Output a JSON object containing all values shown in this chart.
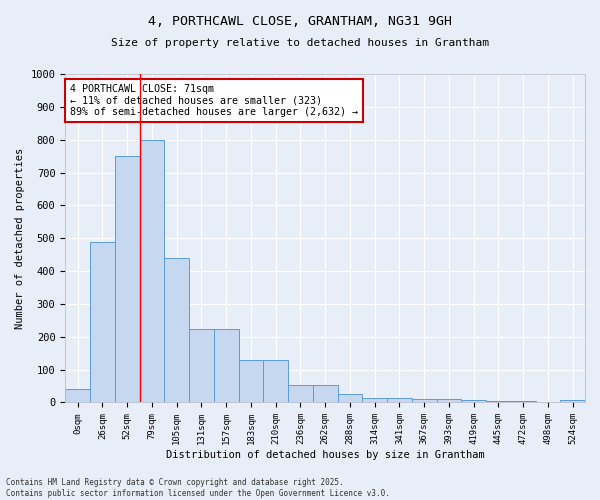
{
  "title": "4, PORTHCAWL CLOSE, GRANTHAM, NG31 9GH",
  "subtitle": "Size of property relative to detached houses in Grantham",
  "xlabel": "Distribution of detached houses by size in Grantham",
  "ylabel": "Number of detached properties",
  "bar_color": "#c5d8f0",
  "bar_edge_color": "#5b9bd5",
  "background_color": "#e8eef8",
  "grid_color": "#ffffff",
  "categories": [
    "0sqm",
    "26sqm",
    "52sqm",
    "79sqm",
    "105sqm",
    "131sqm",
    "157sqm",
    "183sqm",
    "210sqm",
    "236sqm",
    "262sqm",
    "288sqm",
    "314sqm",
    "341sqm",
    "367sqm",
    "393sqm",
    "419sqm",
    "445sqm",
    "472sqm",
    "498sqm",
    "524sqm"
  ],
  "values": [
    40,
    490,
    750,
    800,
    440,
    225,
    225,
    128,
    128,
    52,
    52,
    27,
    14,
    14,
    10,
    10,
    7,
    5,
    5,
    0,
    8
  ],
  "ylim": [
    0,
    1000
  ],
  "yticks": [
    0,
    100,
    200,
    300,
    400,
    500,
    600,
    700,
    800,
    900,
    1000
  ],
  "vline_x": 2.5,
  "annotation_text": "4 PORTHCAWL CLOSE: 71sqm\n← 11% of detached houses are smaller (323)\n89% of semi-detached houses are larger (2,632) →",
  "annotation_box_color": "#ffffff",
  "annotation_border_color": "#cc0000",
  "footer_line1": "Contains HM Land Registry data © Crown copyright and database right 2025.",
  "footer_line2": "Contains public sector information licensed under the Open Government Licence v3.0."
}
